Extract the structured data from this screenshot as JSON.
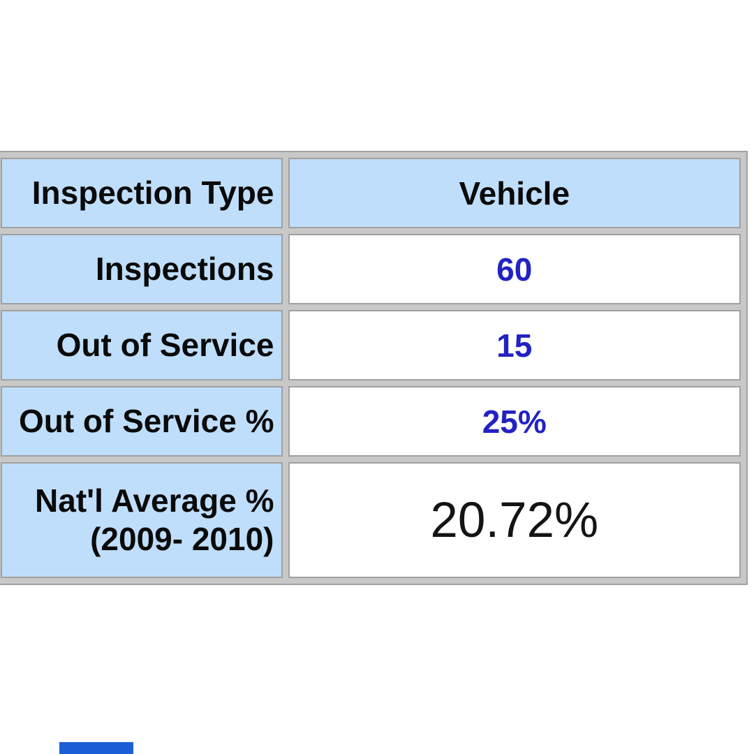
{
  "table": {
    "header": {
      "col1": "Inspection Type",
      "col2": "Vehicle"
    },
    "rows": [
      {
        "label": "Inspections",
        "value": "60"
      },
      {
        "label": "Out of Service",
        "value": "15"
      },
      {
        "label": "Out of Service %",
        "value": "25%"
      },
      {
        "label_line1": "Nat'l Average %",
        "label_line2": "(2009- 2010)",
        "value": "20.72%"
      }
    ],
    "colors": {
      "label_cell_bg": "#bfdefb",
      "header_cell_bg": "#bfdefb",
      "value_cell_bg": "#ffffff",
      "grid_band": "#c8c8c8",
      "grid_line": "#a0a0a0",
      "value_text_blue": "#2222c4",
      "label_text_black": "#0a0a0a"
    }
  },
  "footer": {
    "clipped_bar_color": "#1a5fd6"
  },
  "chart_data": {
    "type": "table",
    "columns": [
      "Inspection Type",
      "Vehicle"
    ],
    "rows": [
      [
        "Inspections",
        "60"
      ],
      [
        "Out of Service",
        "15"
      ],
      [
        "Out of Service %",
        "25%"
      ],
      [
        "Nat'l Average % (2009- 2010)",
        "20.72%"
      ]
    ]
  }
}
